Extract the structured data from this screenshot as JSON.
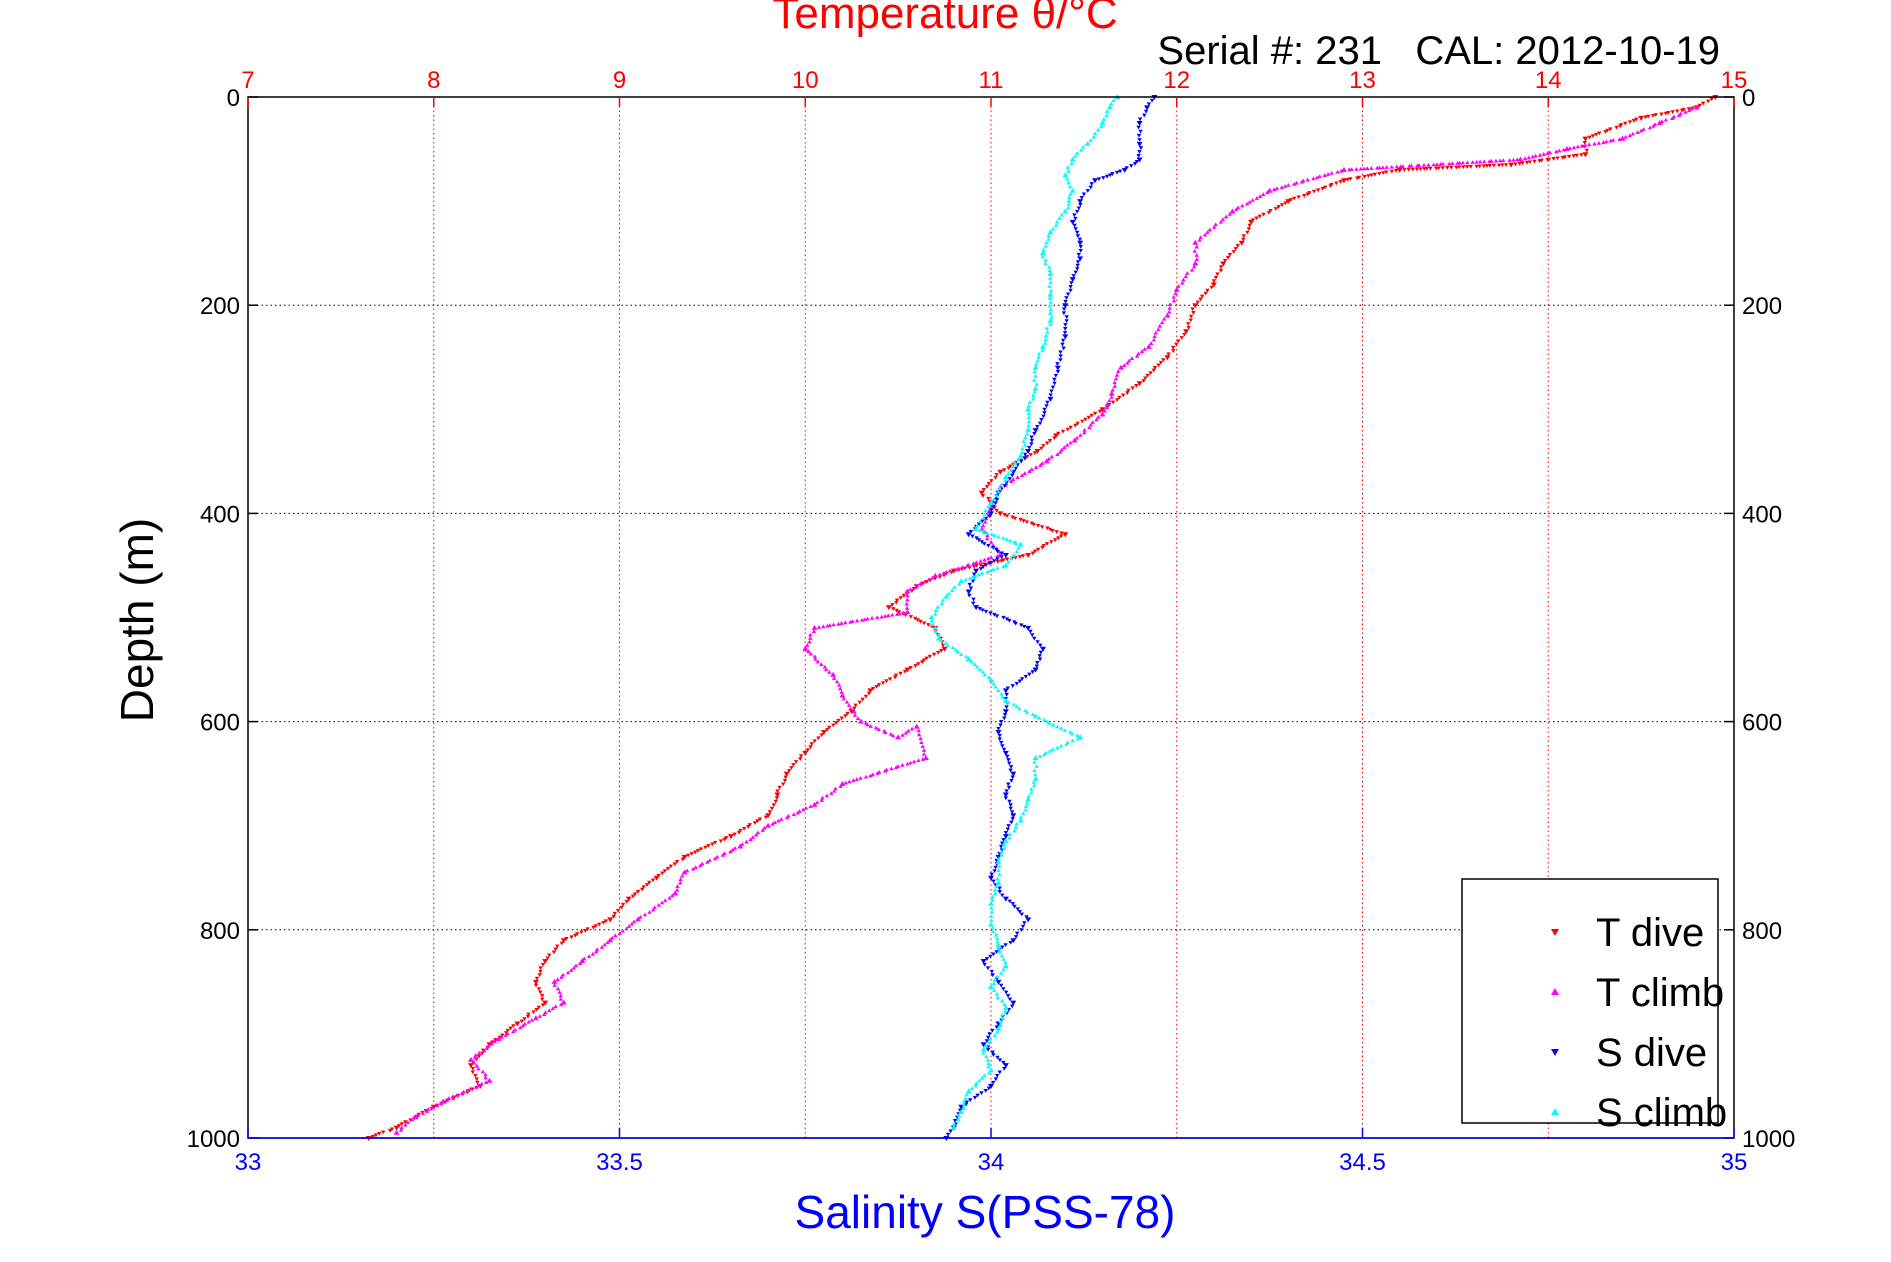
{
  "chart_data": {
    "type": "scatter",
    "title": "Temperature θ/°C",
    "subtitle": "Serial #: 231   CAL: 2012-10-19",
    "xlabel": "Salinity S(PSS-78)",
    "ylabel": "Depth (m)",
    "y_axis": {
      "label": "Depth (m)",
      "range": [
        0,
        1000
      ],
      "reversed": true,
      "ticks": [
        "0",
        "200",
        "400",
        "600",
        "800",
        "1000"
      ]
    },
    "x_top_axis": {
      "label": "Temperature θ/°C",
      "range": [
        7,
        15
      ],
      "ticks": [
        "7",
        "8",
        "9",
        "10",
        "11",
        "12",
        "13",
        "14",
        "15"
      ],
      "color": "#ff0000"
    },
    "x_bottom_axis": {
      "label": "Salinity S(PSS-78)",
      "range": [
        33,
        35
      ],
      "ticks": [
        "33",
        "33.5",
        "34",
        "34.5",
        "35"
      ],
      "color": "#0000ff"
    },
    "grid": true,
    "legend_position": "bottom-right",
    "series": [
      {
        "name": "T dive",
        "axis": "temperature",
        "color": "#ff0000",
        "points": [
          [
            14.9,
            0
          ],
          [
            14.8,
            10
          ],
          [
            14.5,
            20
          ],
          [
            14.2,
            40
          ],
          [
            14.2,
            55
          ],
          [
            13.8,
            65
          ],
          [
            13.2,
            70
          ],
          [
            12.9,
            80
          ],
          [
            12.6,
            100
          ],
          [
            12.4,
            120
          ],
          [
            12.35,
            140
          ],
          [
            12.25,
            160
          ],
          [
            12.2,
            180
          ],
          [
            12.1,
            200
          ],
          [
            12.05,
            225
          ],
          [
            11.95,
            250
          ],
          [
            11.8,
            275
          ],
          [
            11.6,
            300
          ],
          [
            11.35,
            325
          ],
          [
            11.25,
            340
          ],
          [
            11.05,
            360
          ],
          [
            10.95,
            380
          ],
          [
            11.05,
            400
          ],
          [
            11.4,
            420
          ],
          [
            11.2,
            440
          ],
          [
            10.8,
            455
          ],
          [
            10.6,
            470
          ],
          [
            10.45,
            490
          ],
          [
            10.7,
            510
          ],
          [
            10.75,
            530
          ],
          [
            10.55,
            550
          ],
          [
            10.35,
            570
          ],
          [
            10.25,
            590
          ],
          [
            10.1,
            610
          ],
          [
            10.0,
            630
          ],
          [
            9.9,
            650
          ],
          [
            9.85,
            670
          ],
          [
            9.8,
            690
          ],
          [
            9.6,
            710
          ],
          [
            9.35,
            730
          ],
          [
            9.2,
            750
          ],
          [
            9.05,
            770
          ],
          [
            8.95,
            790
          ],
          [
            8.7,
            810
          ],
          [
            8.6,
            830
          ],
          [
            8.55,
            850
          ],
          [
            8.6,
            870
          ],
          [
            8.45,
            890
          ],
          [
            8.3,
            910
          ],
          [
            8.2,
            930
          ],
          [
            8.25,
            950
          ],
          [
            8.0,
            970
          ],
          [
            7.8,
            990
          ],
          [
            7.65,
            1000
          ]
        ]
      },
      {
        "name": "T climb",
        "axis": "temperature",
        "color": "#ff00ff",
        "points": [
          [
            14.8,
            10
          ],
          [
            14.6,
            25
          ],
          [
            14.4,
            40
          ],
          [
            14.1,
            50
          ],
          [
            13.85,
            60
          ],
          [
            12.9,
            70
          ],
          [
            12.5,
            90
          ],
          [
            12.3,
            110
          ],
          [
            12.1,
            140
          ],
          [
            12.1,
            160
          ],
          [
            12.0,
            185
          ],
          [
            11.95,
            210
          ],
          [
            11.85,
            240
          ],
          [
            11.7,
            260
          ],
          [
            11.65,
            285
          ],
          [
            11.6,
            305
          ],
          [
            11.45,
            330
          ],
          [
            11.3,
            350
          ],
          [
            11.05,
            375
          ],
          [
            11.0,
            395
          ],
          [
            10.95,
            415
          ],
          [
            11.05,
            440
          ],
          [
            10.7,
            460
          ],
          [
            10.55,
            475
          ],
          [
            10.55,
            495
          ],
          [
            10.05,
            510
          ],
          [
            10.0,
            530
          ],
          [
            10.15,
            555
          ],
          [
            10.2,
            575
          ],
          [
            10.3,
            600
          ],
          [
            10.5,
            615
          ],
          [
            10.6,
            605
          ],
          [
            10.65,
            635
          ],
          [
            10.2,
            660
          ],
          [
            10.05,
            680
          ],
          [
            9.8,
            700
          ],
          [
            9.65,
            720
          ],
          [
            9.35,
            745
          ],
          [
            9.3,
            765
          ],
          [
            9.1,
            790
          ],
          [
            8.95,
            810
          ],
          [
            8.8,
            830
          ],
          [
            8.65,
            850
          ],
          [
            8.7,
            870
          ],
          [
            8.55,
            885
          ],
          [
            8.35,
            905
          ],
          [
            8.2,
            925
          ],
          [
            8.3,
            945
          ],
          [
            8.05,
            965
          ],
          [
            7.9,
            980
          ],
          [
            7.8,
            995
          ]
        ]
      },
      {
        "name": "S dive",
        "axis": "salinity",
        "color": "#0000ff",
        "points": [
          [
            34.22,
            0
          ],
          [
            34.21,
            10
          ],
          [
            34.2,
            25
          ],
          [
            34.2,
            45
          ],
          [
            34.2,
            60
          ],
          [
            34.18,
            70
          ],
          [
            34.14,
            80
          ],
          [
            34.12,
            100
          ],
          [
            34.11,
            120
          ],
          [
            34.12,
            140
          ],
          [
            34.12,
            155
          ],
          [
            34.11,
            175
          ],
          [
            34.1,
            200
          ],
          [
            34.1,
            230
          ],
          [
            34.09,
            260
          ],
          [
            34.08,
            290
          ],
          [
            34.06,
            320
          ],
          [
            34.05,
            340
          ],
          [
            34.03,
            360
          ],
          [
            34.01,
            380
          ],
          [
            34.0,
            400
          ],
          [
            33.97,
            420
          ],
          [
            34.02,
            440
          ],
          [
            33.98,
            455
          ],
          [
            33.97,
            475
          ],
          [
            33.98,
            490
          ],
          [
            34.05,
            510
          ],
          [
            34.07,
            530
          ],
          [
            34.06,
            550
          ],
          [
            34.02,
            570
          ],
          [
            34.02,
            590
          ],
          [
            34.01,
            610
          ],
          [
            34.02,
            630
          ],
          [
            34.03,
            650
          ],
          [
            34.02,
            670
          ],
          [
            34.03,
            690
          ],
          [
            34.02,
            710
          ],
          [
            34.01,
            730
          ],
          [
            34.0,
            750
          ],
          [
            34.02,
            770
          ],
          [
            34.05,
            790
          ],
          [
            34.03,
            810
          ],
          [
            33.99,
            830
          ],
          [
            34.01,
            850
          ],
          [
            34.03,
            870
          ],
          [
            34.01,
            890
          ],
          [
            33.99,
            910
          ],
          [
            34.02,
            930
          ],
          [
            34.0,
            950
          ],
          [
            33.96,
            970
          ],
          [
            33.95,
            990
          ],
          [
            33.94,
            1000
          ]
        ]
      },
      {
        "name": "S climb",
        "axis": "salinity",
        "color": "#00ffff",
        "points": [
          [
            34.17,
            0
          ],
          [
            34.16,
            10
          ],
          [
            34.15,
            25
          ],
          [
            34.13,
            45
          ],
          [
            34.11,
            60
          ],
          [
            34.1,
            75
          ],
          [
            34.11,
            90
          ],
          [
            34.1,
            110
          ],
          [
            34.08,
            130
          ],
          [
            34.07,
            150
          ],
          [
            34.08,
            170
          ],
          [
            34.08,
            190
          ],
          [
            34.08,
            215
          ],
          [
            34.07,
            240
          ],
          [
            34.06,
            260
          ],
          [
            34.06,
            280
          ],
          [
            34.05,
            300
          ],
          [
            34.05,
            320
          ],
          [
            34.04,
            345
          ],
          [
            34.02,
            365
          ],
          [
            34.0,
            390
          ],
          [
            33.98,
            415
          ],
          [
            34.04,
            430
          ],
          [
            34.02,
            450
          ],
          [
            33.96,
            465
          ],
          [
            33.94,
            480
          ],
          [
            33.92,
            500
          ],
          [
            33.93,
            520
          ],
          [
            33.97,
            540
          ],
          [
            34.0,
            560
          ],
          [
            34.02,
            580
          ],
          [
            34.06,
            595
          ],
          [
            34.12,
            615
          ],
          [
            34.06,
            635
          ],
          [
            34.06,
            655
          ],
          [
            34.05,
            675
          ],
          [
            34.04,
            695
          ],
          [
            34.02,
            715
          ],
          [
            34.01,
            735
          ],
          [
            34.01,
            755
          ],
          [
            34.0,
            775
          ],
          [
            34.0,
            795
          ],
          [
            34.01,
            815
          ],
          [
            34.02,
            835
          ],
          [
            34.0,
            855
          ],
          [
            34.02,
            875
          ],
          [
            34.01,
            895
          ],
          [
            33.99,
            915
          ],
          [
            34.0,
            935
          ],
          [
            33.97,
            955
          ],
          [
            33.96,
            975
          ],
          [
            33.95,
            990
          ]
        ]
      }
    ]
  }
}
